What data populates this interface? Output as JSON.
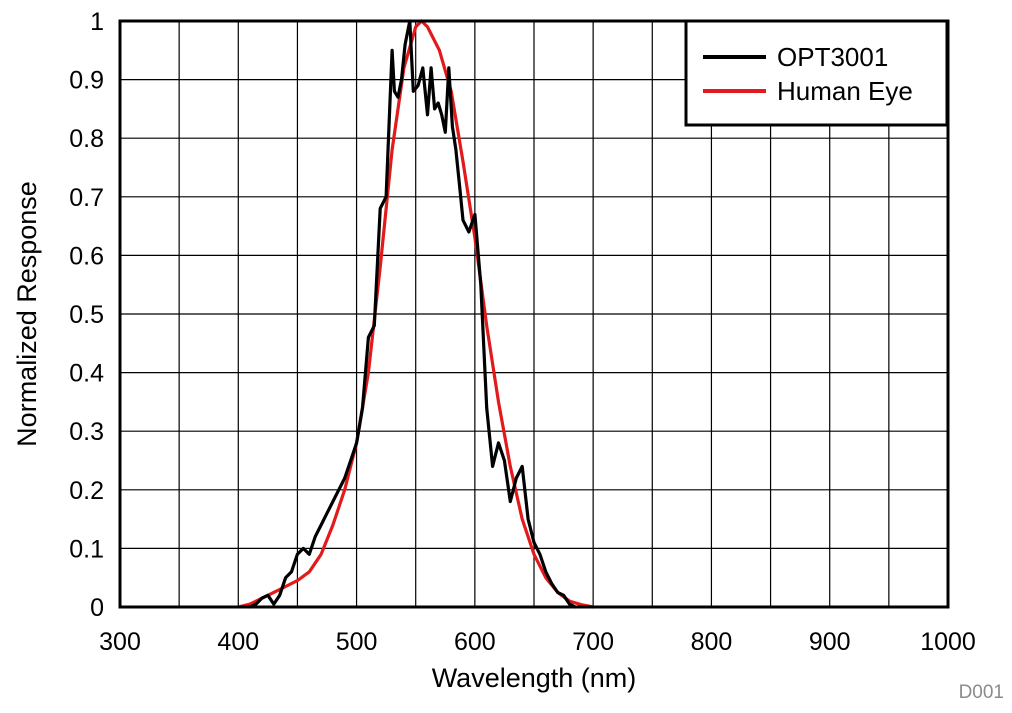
{
  "chart_data": {
    "type": "line",
    "title": "",
    "xlabel": "Wavelength (nm)",
    "ylabel": "Normalized Response",
    "xlim": [
      300,
      1000
    ],
    "ylim": [
      0,
      1
    ],
    "x_ticks": [
      300,
      400,
      500,
      600,
      700,
      800,
      900,
      1000
    ],
    "y_ticks": [
      0,
      0.1,
      0.2,
      0.3,
      0.4,
      0.5,
      0.6,
      0.7,
      0.8,
      0.9,
      1
    ],
    "x_grid_step": 50,
    "y_grid_step": 0.1,
    "grid": true,
    "legend_position": "top-right",
    "figure_id": "D001",
    "series": [
      {
        "name": "OPT3001",
        "color": "#000000",
        "x": [
          410,
          415,
          420,
          425,
          430,
          435,
          440,
          445,
          450,
          455,
          460,
          465,
          470,
          475,
          480,
          485,
          490,
          495,
          500,
          505,
          510,
          515,
          520,
          525,
          530,
          532,
          535,
          538,
          541,
          545,
          548,
          552,
          556,
          560,
          563,
          566,
          569,
          572,
          575,
          578,
          581,
          584,
          587,
          590,
          595,
          600,
          605,
          610,
          615,
          620,
          625,
          630,
          635,
          640,
          645,
          650,
          655,
          660,
          665,
          670,
          675,
          680,
          685
        ],
        "y": [
          0.0,
          0.005,
          0.015,
          0.02,
          0.005,
          0.02,
          0.05,
          0.06,
          0.09,
          0.1,
          0.09,
          0.12,
          0.14,
          0.16,
          0.18,
          0.2,
          0.22,
          0.25,
          0.28,
          0.34,
          0.46,
          0.48,
          0.68,
          0.7,
          0.95,
          0.88,
          0.87,
          0.9,
          0.96,
          1.0,
          0.88,
          0.89,
          0.92,
          0.84,
          0.92,
          0.85,
          0.86,
          0.84,
          0.81,
          0.92,
          0.82,
          0.78,
          0.72,
          0.66,
          0.64,
          0.67,
          0.55,
          0.34,
          0.24,
          0.28,
          0.25,
          0.18,
          0.22,
          0.24,
          0.15,
          0.11,
          0.09,
          0.06,
          0.04,
          0.025,
          0.02,
          0.005,
          0.0
        ]
      },
      {
        "name": "Human Eye",
        "color": "#e31a1c",
        "x": [
          400,
          410,
          420,
          430,
          440,
          450,
          460,
          470,
          480,
          490,
          500,
          510,
          520,
          530,
          540,
          550,
          555,
          560,
          570,
          580,
          590,
          600,
          610,
          620,
          630,
          640,
          650,
          660,
          670,
          680,
          690,
          700
        ],
        "y": [
          0.0,
          0.005,
          0.015,
          0.025,
          0.035,
          0.045,
          0.06,
          0.09,
          0.14,
          0.2,
          0.28,
          0.4,
          0.58,
          0.78,
          0.92,
          0.99,
          1.0,
          0.99,
          0.95,
          0.88,
          0.76,
          0.63,
          0.48,
          0.35,
          0.24,
          0.15,
          0.09,
          0.05,
          0.025,
          0.01,
          0.004,
          0.0
        ]
      }
    ]
  }
}
